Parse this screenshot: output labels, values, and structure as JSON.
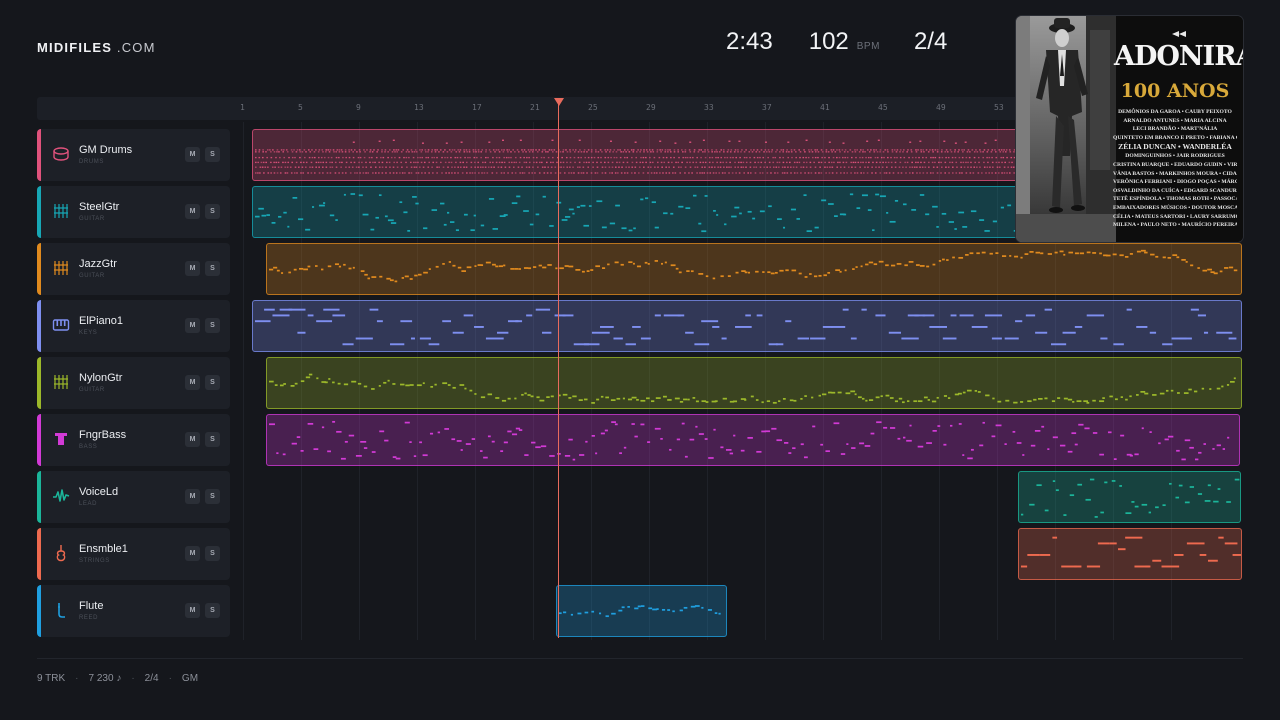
{
  "brand": {
    "name": "MIDIFILES",
    "suffix": ".COM"
  },
  "transport": {
    "time": "2:43",
    "bpm": "102",
    "bpm_unit": "BPM",
    "signature": "2/4"
  },
  "ruler": {
    "ticks": [
      "1",
      "5",
      "9",
      "13",
      "17",
      "21",
      "25",
      "29",
      "33",
      "37",
      "41",
      "45",
      "49",
      "53"
    ]
  },
  "tracks": [
    {
      "name": "GM Drums",
      "type": "DRUMS",
      "icon": "drum-icon",
      "color": "#e0527c",
      "mute": "M",
      "solo": "S"
    },
    {
      "name": "SteelGtr",
      "type": "GUITAR",
      "icon": "guitar-grid-icon",
      "color": "#17a7b5",
      "mute": "M",
      "solo": "S"
    },
    {
      "name": "JazzGtr",
      "type": "GUITAR",
      "icon": "guitar-grid-icon",
      "color": "#e08a1e",
      "mute": "M",
      "solo": "S"
    },
    {
      "name": "ElPiano1",
      "type": "KEYS",
      "icon": "keyboard-icon",
      "color": "#7e8ff0",
      "mute": "M",
      "solo": "S"
    },
    {
      "name": "NylonGtr",
      "type": "GUITAR",
      "icon": "guitar-grid-icon",
      "color": "#9cb82a",
      "mute": "M",
      "solo": "S"
    },
    {
      "name": "FngrBass",
      "type": "BASS",
      "icon": "bass-icon",
      "color": "#d23ad6",
      "mute": "M",
      "solo": "S"
    },
    {
      "name": "VoiceLd",
      "type": "LEAD",
      "icon": "waveform-icon",
      "color": "#1bb59a",
      "mute": "M",
      "solo": "S"
    },
    {
      "name": "Ensmble1",
      "type": "STRINGS",
      "icon": "violin-icon",
      "color": "#ee6a4f",
      "mute": "M",
      "solo": "S"
    },
    {
      "name": "Flute",
      "type": "REED",
      "icon": "flute-icon",
      "color": "#1f9fe0",
      "mute": "M",
      "solo": "S"
    }
  ],
  "album": {
    "title": "ADONIRAN",
    "subtitle": "100 ANOS",
    "artists": [
      "DEMÔNIOS DA GAROA • CAUBY PEIXOTO",
      "ARNALDO ANTUNES • MARIA ALCINA",
      "LECI BRANDÃO • MART'NÁLIA",
      "QUINTETO EM BRANCO E PRETO • FABIANA COZZA",
      "ZÉLIA DUNCAN • WANDERLÉA",
      "DOMINGUINHOS • JAIR RODRIGUES",
      "CRISTINA BUARQUE • EDUARDO GUDIN • VIRGÍNIA ROSA",
      "VÂNIA BASTOS • MARKINHOS MOURA • CIDA MOREIRA",
      "VERÔNICA FERRIANI • DIOGO POÇAS • MÁRCIA CASTRO",
      "OSVALDINHO DA CUÍCA • EDGARD SCANDURRA",
      "TETÊ ESPÍNDOLA • THOMAS ROTH • PASSOCA",
      "EMBAIXADORES MÚSICOS • DOUTOR MOSCARDE • BATUQUE DE PAI",
      "CÉLIA • MATEUS SARTORI • LAURY SARRUMOR",
      "MILENA • PAULO NETO • MAURÍCIO PEREIRA"
    ]
  },
  "footer": {
    "tracks": "9 TRK",
    "notes": "7 230 ♪",
    "signature": "2/4",
    "standard": "GM"
  }
}
